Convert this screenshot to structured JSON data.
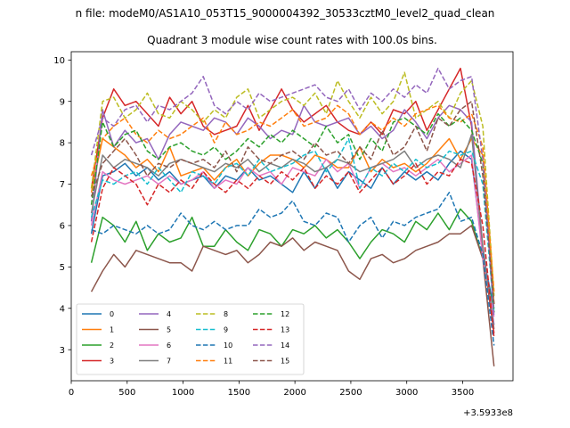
{
  "chart_data": {
    "type": "line",
    "suptitle": "n file: modeM0/AS1A10_053T15_9000004392_30533cztM0_level2_quad_clean",
    "title": "Quadrant 3 module wise count rates with 100.0s bins.",
    "xlabel": "",
    "ylabel": "",
    "x_offset_label": "+3.5933e8",
    "xlim": [
      0,
      3950
    ],
    "ylim": [
      2.25,
      10.2
    ],
    "xticks": [
      0,
      500,
      1000,
      1500,
      2000,
      2500,
      3000,
      3500
    ],
    "yticks": [
      3,
      4,
      5,
      6,
      7,
      8,
      9,
      10
    ],
    "legend_position": "lower-left",
    "x": [
      180,
      280,
      380,
      480,
      580,
      680,
      780,
      880,
      980,
      1080,
      1180,
      1280,
      1380,
      1480,
      1580,
      1680,
      1780,
      1880,
      1980,
      2080,
      2180,
      2280,
      2380,
      2480,
      2580,
      2680,
      2780,
      2880,
      2980,
      3080,
      3180,
      3280,
      3380,
      3480,
      3580,
      3680,
      3780
    ],
    "series": [
      {
        "name": "0",
        "color": "#1f77b4",
        "dash": "solid",
        "values": [
          5.8,
          7.2,
          7.3,
          7.5,
          7.2,
          7.4,
          7.1,
          7.3,
          7.0,
          7.1,
          7.2,
          6.9,
          7.2,
          7.1,
          7.4,
          7.1,
          7.2,
          7.0,
          6.8,
          7.3,
          6.9,
          7.4,
          6.9,
          7.3,
          7.1,
          6.9,
          7.4,
          7.0,
          7.3,
          7.1,
          7.3,
          7.1,
          7.5,
          7.8,
          7.6,
          5.3,
          4.0
        ]
      },
      {
        "name": "1",
        "color": "#ff7f0e",
        "dash": "solid",
        "values": [
          6.8,
          8.1,
          7.9,
          7.7,
          7.4,
          7.6,
          7.3,
          7.9,
          7.2,
          7.3,
          7.4,
          7.1,
          7.4,
          7.6,
          7.2,
          7.5,
          7.7,
          7.7,
          7.6,
          7.4,
          7.7,
          7.6,
          7.4,
          7.4,
          7.9,
          7.3,
          7.6,
          7.4,
          7.5,
          7.3,
          7.5,
          7.8,
          8.1,
          7.6,
          8.1,
          7.7,
          4.1
        ]
      },
      {
        "name": "2",
        "color": "#2ca02c",
        "dash": "solid",
        "values": [
          5.1,
          6.2,
          6.0,
          5.6,
          6.1,
          5.4,
          5.8,
          5.6,
          5.7,
          6.2,
          5.5,
          5.5,
          5.9,
          5.6,
          5.4,
          5.9,
          5.8,
          5.5,
          5.9,
          5.8,
          6.0,
          5.7,
          5.9,
          5.6,
          5.2,
          5.6,
          5.9,
          5.8,
          5.6,
          6.1,
          5.9,
          6.3,
          5.9,
          6.4,
          6.1,
          5.2,
          3.9
        ]
      },
      {
        "name": "3",
        "color": "#d62728",
        "dash": "solid",
        "values": [
          6.9,
          8.6,
          9.3,
          8.9,
          9.0,
          8.7,
          8.4,
          9.1,
          8.7,
          9.0,
          8.4,
          8.2,
          8.3,
          8.4,
          8.9,
          8.3,
          8.8,
          9.3,
          8.8,
          8.5,
          8.7,
          8.9,
          8.5,
          8.3,
          8.2,
          8.5,
          8.2,
          8.8,
          8.7,
          9.0,
          8.3,
          8.8,
          9.3,
          9.8,
          8.4,
          5.4,
          3.4
        ]
      },
      {
        "name": "4",
        "color": "#9467bd",
        "dash": "solid",
        "values": [
          6.1,
          8.8,
          7.9,
          8.3,
          8.0,
          8.1,
          7.6,
          8.2,
          8.5,
          8.4,
          8.3,
          8.6,
          8.5,
          8.2,
          8.6,
          8.4,
          8.1,
          8.3,
          8.2,
          8.9,
          8.5,
          8.4,
          8.5,
          8.6,
          8.2,
          8.4,
          8.1,
          8.3,
          8.8,
          8.5,
          8.1,
          8.6,
          8.9,
          8.8,
          8.5,
          5.5,
          3.6
        ]
      },
      {
        "name": "5",
        "color": "#8c564b",
        "dash": "solid",
        "values": [
          4.4,
          4.9,
          5.3,
          5.0,
          5.4,
          5.3,
          5.2,
          5.1,
          5.1,
          4.9,
          5.5,
          5.4,
          5.3,
          5.4,
          5.1,
          5.3,
          5.6,
          5.5,
          5.7,
          5.4,
          5.6,
          5.5,
          5.4,
          4.9,
          4.7,
          5.2,
          5.3,
          5.1,
          5.2,
          5.4,
          5.5,
          5.6,
          5.8,
          5.8,
          6.0,
          5.2,
          2.6
        ]
      },
      {
        "name": "6",
        "color": "#e377c2",
        "dash": "solid",
        "values": [
          6.0,
          7.3,
          7.1,
          7.0,
          7.1,
          7.2,
          7.0,
          7.2,
          7.0,
          7.1,
          7.3,
          6.9,
          7.1,
          7.0,
          7.4,
          7.2,
          7.3,
          7.0,
          7.4,
          7.3,
          7.2,
          7.6,
          7.3,
          7.5,
          6.9,
          7.4,
          7.5,
          7.3,
          7.4,
          7.2,
          7.4,
          7.6,
          7.3,
          7.5,
          7.7,
          5.2,
          3.8
        ]
      },
      {
        "name": "7",
        "color": "#7f7f7f",
        "dash": "solid",
        "values": [
          6.3,
          7.7,
          7.4,
          7.6,
          7.5,
          7.4,
          7.2,
          7.5,
          7.6,
          7.5,
          7.4,
          7.3,
          7.5,
          7.4,
          7.6,
          7.3,
          7.5,
          7.4,
          7.6,
          7.5,
          7.3,
          7.4,
          7.6,
          7.5,
          7.3,
          7.4,
          7.5,
          7.6,
          7.8,
          7.4,
          7.6,
          7.7,
          7.6,
          7.4,
          8.2,
          5.5,
          3.5
        ]
      },
      {
        "name": "8",
        "color": "#bcbd22",
        "dash": "dashed",
        "values": [
          6.9,
          9.0,
          9.1,
          8.6,
          8.8,
          9.2,
          8.7,
          8.6,
          9.0,
          8.8,
          8.5,
          8.8,
          8.6,
          9.1,
          9.3,
          8.6,
          8.8,
          9.0,
          9.1,
          8.9,
          9.2,
          8.7,
          9.5,
          9.0,
          8.6,
          9.1,
          8.7,
          9.0,
          9.7,
          8.6,
          8.8,
          9.0,
          8.6,
          9.2,
          9.5,
          8.4,
          4.3
        ]
      },
      {
        "name": "9",
        "color": "#17becf",
        "dash": "dashed",
        "values": [
          6.2,
          7.1,
          7.0,
          7.2,
          7.3,
          7.0,
          7.4,
          7.1,
          6.8,
          7.3,
          7.2,
          7.0,
          7.4,
          7.5,
          7.2,
          7.6,
          7.3,
          7.4,
          7.5,
          7.7,
          7.8,
          7.3,
          7.6,
          8.1,
          6.9,
          7.4,
          7.2,
          7.5,
          7.3,
          7.6,
          7.4,
          7.5,
          7.8,
          7.7,
          7.8,
          7.0,
          3.9
        ]
      },
      {
        "name": "10",
        "color": "#1f77b4",
        "dash": "dashed",
        "values": [
          5.9,
          5.8,
          6.0,
          5.9,
          5.8,
          6.0,
          5.8,
          5.9,
          6.3,
          6.0,
          5.9,
          6.1,
          5.9,
          6.0,
          6.0,
          6.4,
          6.2,
          6.3,
          6.6,
          6.1,
          6.0,
          6.3,
          6.2,
          5.6,
          6.0,
          6.2,
          5.7,
          6.1,
          6.0,
          6.2,
          6.3,
          6.4,
          6.8,
          6.1,
          6.2,
          5.3,
          3.1
        ]
      },
      {
        "name": "11",
        "color": "#ff7f0e",
        "dash": "dashed",
        "values": [
          7.2,
          8.1,
          8.4,
          8.6,
          8.2,
          8.0,
          8.3,
          8.1,
          8.2,
          8.4,
          8.6,
          8.0,
          8.5,
          8.2,
          8.3,
          8.5,
          8.4,
          8.6,
          8.8,
          8.4,
          8.5,
          8.6,
          8.9,
          8.7,
          8.2,
          8.5,
          8.3,
          8.6,
          8.4,
          8.7,
          8.8,
          8.9,
          8.6,
          8.5,
          8.7,
          7.9,
          4.4
        ]
      },
      {
        "name": "12",
        "color": "#2ca02c",
        "dash": "dashed",
        "values": [
          6.5,
          8.5,
          7.9,
          8.2,
          8.3,
          7.8,
          7.6,
          7.9,
          8.0,
          7.8,
          7.7,
          7.9,
          7.6,
          7.8,
          8.1,
          7.9,
          8.2,
          8.0,
          8.3,
          8.1,
          7.9,
          8.4,
          8.0,
          8.2,
          7.6,
          8.1,
          7.8,
          8.5,
          8.6,
          8.4,
          8.2,
          8.7,
          8.4,
          8.6,
          8.3,
          7.5,
          3.9
        ]
      },
      {
        "name": "13",
        "color": "#d62728",
        "dash": "dashed",
        "values": [
          5.6,
          6.9,
          7.4,
          7.2,
          7.0,
          6.5,
          7.0,
          6.8,
          7.1,
          6.9,
          7.3,
          7.0,
          6.8,
          7.1,
          6.9,
          7.2,
          7.0,
          7.3,
          7.1,
          7.4,
          6.9,
          7.2,
          7.0,
          7.3,
          6.8,
          7.1,
          7.4,
          7.0,
          7.2,
          7.5,
          7.0,
          7.3,
          7.2,
          7.6,
          7.5,
          6.0,
          3.3
        ]
      },
      {
        "name": "14",
        "color": "#9467bd",
        "dash": "dashed",
        "values": [
          7.7,
          8.6,
          8.4,
          8.8,
          8.9,
          8.5,
          8.9,
          8.8,
          9.0,
          9.2,
          9.6,
          8.9,
          8.7,
          9.0,
          8.8,
          9.2,
          9.0,
          9.1,
          9.2,
          9.3,
          9.4,
          9.1,
          9.0,
          9.3,
          8.8,
          9.2,
          9.0,
          9.3,
          9.1,
          9.4,
          9.2,
          9.8,
          9.3,
          9.5,
          9.6,
          7.6,
          3.8
        ]
      },
      {
        "name": "15",
        "color": "#8c564b",
        "dash": "dashed",
        "values": [
          6.7,
          7.5,
          7.8,
          8.1,
          7.7,
          7.2,
          7.5,
          7.4,
          7.6,
          7.5,
          7.6,
          7.4,
          7.8,
          7.3,
          7.9,
          7.6,
          7.5,
          7.7,
          7.8,
          7.6,
          8.0,
          7.7,
          7.8,
          7.5,
          7.9,
          7.6,
          8.3,
          7.7,
          7.9,
          8.4,
          7.8,
          8.6,
          8.4,
          8.8,
          9.0,
          7.2,
          4.1
        ]
      }
    ]
  }
}
